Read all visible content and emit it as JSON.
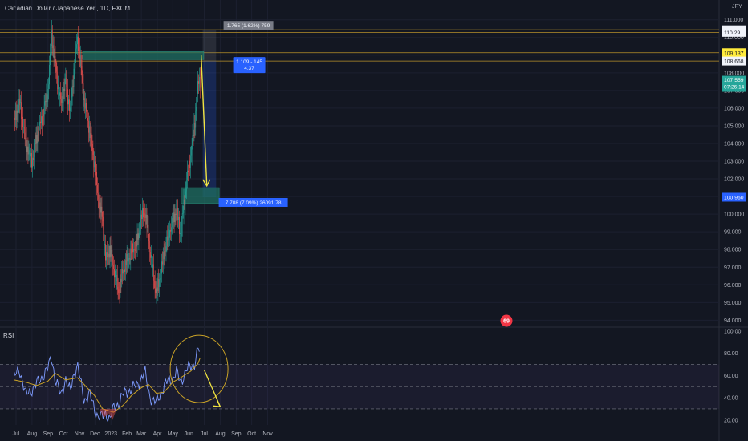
{
  "header": {
    "title": "Canadian Dollar / Japanese Yen, 1D, FXCM",
    "currency": "JPY"
  },
  "indicator": {
    "name": "RSI"
  },
  "colors": {
    "background": "#131722",
    "up": "#26a69a",
    "down": "#ef5350",
    "rsi": "#7e9cff",
    "rsi_ma": "#c9a227",
    "zone": "#1f6f62",
    "target": "#5b9cf6",
    "arrow": "#f0e442",
    "hline": "#b8912a",
    "circle": "#c9a227"
  },
  "chart_data": [
    {
      "type": "candlestick",
      "title": "Canadian Dollar / Japanese Yen, 1D, FXCM",
      "y_unit": "JPY",
      "ylim": [
        94,
        111
      ],
      "y_ticks": [
        "111.000",
        "110.000",
        "109.000",
        "108.000",
        "107.000",
        "106.000",
        "105.000",
        "104.000",
        "103.000",
        "102.000",
        "101.000",
        "100.000",
        "99.000",
        "98.000",
        "97.000",
        "96.000",
        "95.000",
        "94.000"
      ],
      "x_ticks": [
        "Jul",
        "Aug",
        "Sep",
        "Oct",
        "Nov",
        "Dec",
        "2023",
        "Feb",
        "Mar",
        "Apr",
        "May",
        "Jun",
        "Jul",
        "Aug",
        "Sep",
        "Oct",
        "Nov"
      ],
      "close_path": [
        [
          "2022-06-27",
          105.2
        ],
        [
          "2022-07-08",
          106.4
        ],
        [
          "2022-07-20",
          104.0
        ],
        [
          "2022-08-01",
          103.0
        ],
        [
          "2022-08-10",
          104.4
        ],
        [
          "2022-08-22",
          105.6
        ],
        [
          "2022-09-01",
          107.0
        ],
        [
          "2022-09-08",
          110.2
        ],
        [
          "2022-09-15",
          108.4
        ],
        [
          "2022-09-26",
          106.2
        ],
        [
          "2022-10-05",
          107.6
        ],
        [
          "2022-10-14",
          105.7
        ],
        [
          "2022-10-20",
          107.8
        ],
        [
          "2022-10-28",
          110.0
        ],
        [
          "2022-11-04",
          108.4
        ],
        [
          "2022-11-10",
          106.4
        ],
        [
          "2022-11-20",
          104.8
        ],
        [
          "2022-11-30",
          102.8
        ],
        [
          "2022-12-07",
          100.9
        ],
        [
          "2022-12-16",
          99.6
        ],
        [
          "2022-12-22",
          97.4
        ],
        [
          "2022-12-30",
          98.0
        ],
        [
          "2023-01-06",
          97.0
        ],
        [
          "2023-01-16",
          95.6
        ],
        [
          "2023-01-24",
          96.8
        ],
        [
          "2023-02-02",
          97.4
        ],
        [
          "2023-02-10",
          97.9
        ],
        [
          "2023-02-20",
          98.3
        ],
        [
          "2023-03-01",
          99.8
        ],
        [
          "2023-03-08",
          100.2
        ],
        [
          "2023-03-15",
          98.6
        ],
        [
          "2023-03-22",
          97.0
        ],
        [
          "2023-03-30",
          95.5
        ],
        [
          "2023-04-07",
          96.6
        ],
        [
          "2023-04-14",
          97.8
        ],
        [
          "2023-04-24",
          99.0
        ],
        [
          "2023-05-01",
          99.6
        ],
        [
          "2023-05-08",
          100.3
        ],
        [
          "2023-05-16",
          98.8
        ],
        [
          "2023-05-26",
          101.5
        ],
        [
          "2023-06-05",
          103.4
        ],
        [
          "2023-06-12",
          105.0
        ],
        [
          "2023-06-19",
          107.4
        ],
        [
          "2023-06-23",
          107.56
        ]
      ],
      "lines": [
        {
          "label": "110.433",
          "price": 110.433,
          "fill": "#f0f3fa",
          "text_color": "#131722"
        },
        {
          "label": "110.29",
          "price": 110.29,
          "fill": "#f0f3fa",
          "text_color": "#131722"
        },
        {
          "label": "109.137",
          "price": 109.137,
          "fill": "#ffeb3b",
          "text_color": "#131722"
        },
        {
          "label": "108.668",
          "price": 108.668,
          "fill": "#f0f3fa",
          "text_color": "#131722"
        }
      ],
      "last_price": {
        "price": "107.559",
        "countdown": "07:26:14",
        "value": 107.559
      },
      "target_price": {
        "price": "100.960",
        "value": 100.96
      },
      "zones": [
        {
          "name": "resistance-zone",
          "from": "2022-11-07",
          "to": "2023-06-30",
          "low": 108.75,
          "high": 109.2
        },
        {
          "name": "support-zone",
          "from": "2023-05-17",
          "to": "2023-07-30",
          "low": 100.6,
          "high": 101.5
        }
      ],
      "position": {
        "from": "2023-06-28",
        "to": "2023-07-24",
        "entry": 108.668,
        "stop": 110.433,
        "target": 100.96,
        "stop_label": "1.765 (1.62%) 759",
        "entry_label_1": "1.109 - 145",
        "entry_label_2": "4.37",
        "target_label": "7.708 (7.09%) 26091.78"
      },
      "arrow": {
        "from": [
          "2023-06-25",
          109.0
        ],
        "to": [
          "2023-07-06",
          101.6
        ]
      },
      "badge": "69"
    },
    {
      "type": "line",
      "title": "RSI",
      "ylim": [
        15,
        105
      ],
      "y_ticks": [
        "100.00",
        "80.00",
        "60.00",
        "40.00",
        "20.00"
      ],
      "bands": [
        30,
        50,
        70
      ],
      "series": [
        {
          "key": "rsi",
          "values": [
            [
              "2022-06-27",
              58
            ],
            [
              "2022-07-08",
              66
            ],
            [
              "2022-07-20",
              42
            ],
            [
              "2022-08-01",
              48
            ],
            [
              "2022-08-10",
              52
            ],
            [
              "2022-08-22",
              60
            ],
            [
              "2022-09-01",
              66
            ],
            [
              "2022-09-08",
              78
            ],
            [
              "2022-09-15",
              56
            ],
            [
              "2022-09-26",
              42
            ],
            [
              "2022-10-05",
              58
            ],
            [
              "2022-10-14",
              44
            ],
            [
              "2022-10-20",
              60
            ],
            [
              "2022-10-28",
              70
            ],
            [
              "2022-11-04",
              52
            ],
            [
              "2022-11-10",
              38
            ],
            [
              "2022-11-20",
              44
            ],
            [
              "2022-11-30",
              30
            ],
            [
              "2022-12-07",
              24
            ],
            [
              "2022-12-16",
              22
            ],
            [
              "2022-12-22",
              27
            ],
            [
              "2022-12-30",
              21
            ],
            [
              "2023-01-06",
              30
            ],
            [
              "2023-01-16",
              36
            ],
            [
              "2023-01-24",
              42
            ],
            [
              "2023-02-02",
              46
            ],
            [
              "2023-02-10",
              48
            ],
            [
              "2023-02-20",
              51
            ],
            [
              "2023-03-01",
              58
            ],
            [
              "2023-03-08",
              63
            ],
            [
              "2023-03-15",
              46
            ],
            [
              "2023-03-22",
              38
            ],
            [
              "2023-03-30",
              35
            ],
            [
              "2023-04-07",
              44
            ],
            [
              "2023-04-14",
              50
            ],
            [
              "2023-04-24",
              56
            ],
            [
              "2023-05-01",
              58
            ],
            [
              "2023-05-08",
              63
            ],
            [
              "2023-05-16",
              54
            ],
            [
              "2023-05-26",
              64
            ],
            [
              "2023-06-05",
              68
            ],
            [
              "2023-06-12",
              71
            ],
            [
              "2023-06-19",
              84
            ],
            [
              "2023-06-23",
              80
            ]
          ]
        },
        {
          "key": "rsi_ma",
          "values": [
            [
              "2022-06-27",
              56
            ],
            [
              "2022-07-20",
              54
            ],
            [
              "2022-08-10",
              51
            ],
            [
              "2022-09-01",
              55
            ],
            [
              "2022-09-15",
              62
            ],
            [
              "2022-10-05",
              56
            ],
            [
              "2022-10-28",
              58
            ],
            [
              "2022-11-10",
              52
            ],
            [
              "2022-11-30",
              42
            ],
            [
              "2022-12-16",
              30
            ],
            [
              "2023-01-06",
              27
            ],
            [
              "2023-01-24",
              33
            ],
            [
              "2023-02-10",
              42
            ],
            [
              "2023-03-01",
              49
            ],
            [
              "2023-03-15",
              52
            ],
            [
              "2023-03-30",
              44
            ],
            [
              "2023-04-14",
              45
            ],
            [
              "2023-05-01",
              54
            ],
            [
              "2023-05-16",
              58
            ],
            [
              "2023-06-05",
              64
            ],
            [
              "2023-06-19",
              71
            ],
            [
              "2023-06-23",
              76
            ]
          ]
        }
      ],
      "arrow": {
        "from": [
          "2023-07-01",
          65
        ],
        "to": [
          "2023-08-01",
          32
        ]
      }
    }
  ]
}
